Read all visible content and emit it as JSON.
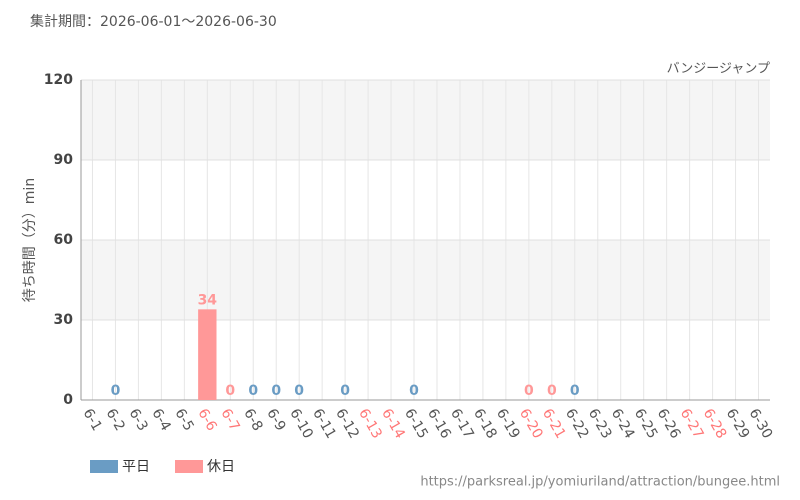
{
  "chart_data": {
    "type": "bar",
    "title": "集計期間：2026-06-01～2026-06-30",
    "subtitle": "バンジージャンプ",
    "y_label": "待ち時間（分）min",
    "source": "https://parksreal.jp/yomiuriland/attraction/bungee.html",
    "categories": [
      "6-1",
      "6-2",
      "6-3",
      "6-4",
      "6-5",
      "6-6",
      "6-7",
      "6-8",
      "6-9",
      "6-10",
      "6-11",
      "6-12",
      "6-13",
      "6-14",
      "6-15",
      "6-16",
      "6-17",
      "6-18",
      "6-19",
      "6-20",
      "6-21",
      "6-22",
      "6-23",
      "6-24",
      "6-25",
      "6-26",
      "6-27",
      "6-28",
      "6-29",
      "6-30"
    ],
    "x_label_colors": [
      "#555",
      "#555",
      "#555",
      "#555",
      "#555",
      "#ff7777",
      "#ff7777",
      "#555",
      "#555",
      "#555",
      "#555",
      "#555",
      "#ff7777",
      "#ff7777",
      "#555",
      "#555",
      "#555",
      "#555",
      "#555",
      "#ff7777",
      "#ff7777",
      "#555",
      "#555",
      "#555",
      "#555",
      "#555",
      "#ff7777",
      "#ff7777",
      "#555",
      "#555"
    ],
    "series": [
      {
        "name": "平日",
        "color": "#6a9cc4",
        "values": [
          null,
          0,
          null,
          null,
          null,
          null,
          null,
          0,
          0,
          0,
          null,
          0,
          null,
          null,
          0,
          null,
          null,
          null,
          null,
          null,
          null,
          0,
          null,
          null,
          null,
          null,
          null,
          null,
          null,
          null
        ]
      },
      {
        "name": "休日",
        "color": "#ff9898",
        "values": [
          null,
          null,
          null,
          null,
          null,
          34,
          0,
          null,
          null,
          null,
          null,
          null,
          null,
          null,
          null,
          null,
          null,
          null,
          null,
          0,
          0,
          null,
          null,
          null,
          null,
          null,
          null,
          null,
          null,
          null
        ]
      }
    ],
    "ylim": [
      0,
      120
    ],
    "yticks": [
      0,
      30,
      60,
      90,
      120
    ],
    "grid": true
  }
}
